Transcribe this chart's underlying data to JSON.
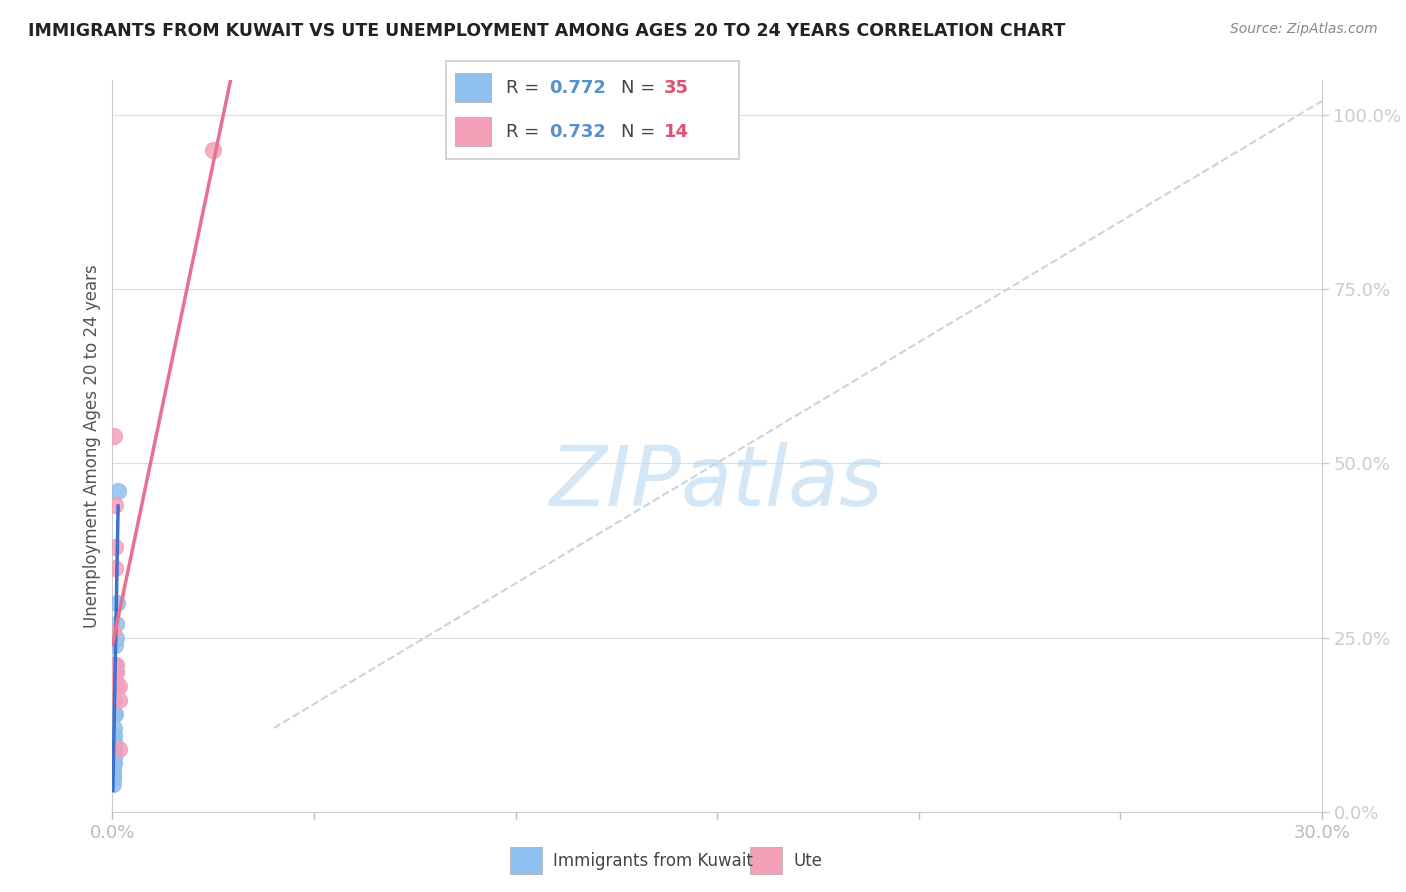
{
  "title": "IMMIGRANTS FROM KUWAIT VS UTE UNEMPLOYMENT AMONG AGES 20 TO 24 YEARS CORRELATION CHART",
  "source": "Source: ZipAtlas.com",
  "ylabel": "Unemployment Among Ages 20 to 24 years",
  "xlim": [
    0.0,
    0.3
  ],
  "ylim": [
    0.0,
    1.05
  ],
  "xtick_positions": [
    0.0,
    0.05,
    0.1,
    0.15,
    0.2,
    0.25,
    0.3
  ],
  "xtick_labels": [
    "0.0%",
    "",
    "",
    "",
    "",
    "",
    "30.0%"
  ],
  "ytick_positions": [
    0.0,
    0.25,
    0.5,
    0.75,
    1.0
  ],
  "ytick_labels": [
    "0.0%",
    "25.0%",
    "50.0%",
    "75.0%",
    "100.0%"
  ],
  "watermark": "ZIPatlas",
  "watermark_color": "#b8d8f0",
  "blue_dot_color": "#90c0ee",
  "pink_dot_color": "#f4a0b8",
  "blue_line_color": "#4070c8",
  "pink_line_color": "#e87090",
  "ref_line_color": "#c8d4e0",
  "right_axis_color": "#5590cc",
  "kuwait_x": [
    0.0002,
    0.0003,
    0.0002,
    0.0004,
    0.0003,
    0.0002,
    0.0001,
    0.0002,
    0.0003,
    0.0004,
    0.0005,
    0.0003,
    0.0002,
    0.0004,
    0.0002,
    0.0003,
    0.0006,
    0.0004,
    0.0003,
    0.0002,
    0.0007,
    0.0005,
    0.0003,
    0.0004,
    0.0009,
    0.0006,
    0.0004,
    0.0008,
    0.0003,
    0.0002,
    0.001,
    0.0007,
    0.0014,
    0.0005,
    0.0003
  ],
  "kuwait_y": [
    0.06,
    0.08,
    0.05,
    0.1,
    0.07,
    0.08,
    0.04,
    0.07,
    0.09,
    0.08,
    0.1,
    0.11,
    0.06,
    0.12,
    0.07,
    0.09,
    0.14,
    0.1,
    0.09,
    0.05,
    0.2,
    0.18,
    0.1,
    0.2,
    0.27,
    0.21,
    0.16,
    0.25,
    0.14,
    0.05,
    0.3,
    0.24,
    0.46,
    0.19,
    0.08
  ],
  "ute_x": [
    0.0002,
    0.0004,
    0.0006,
    0.0007,
    0.0008,
    0.0009,
    0.0006,
    0.0008,
    0.0007,
    0.0015,
    0.0015,
    0.0016,
    0.025,
    0.0004
  ],
  "ute_y": [
    0.26,
    0.21,
    0.35,
    0.44,
    0.18,
    0.2,
    0.19,
    0.21,
    0.38,
    0.09,
    0.16,
    0.18,
    0.95,
    0.54
  ],
  "pink_trendline_x0": 0.0,
  "pink_trendline_x1": 0.3,
  "ref_line_x0": 0.04,
  "ref_line_x1": 0.3,
  "ref_line_y0": 0.12,
  "ref_line_y1": 1.02
}
